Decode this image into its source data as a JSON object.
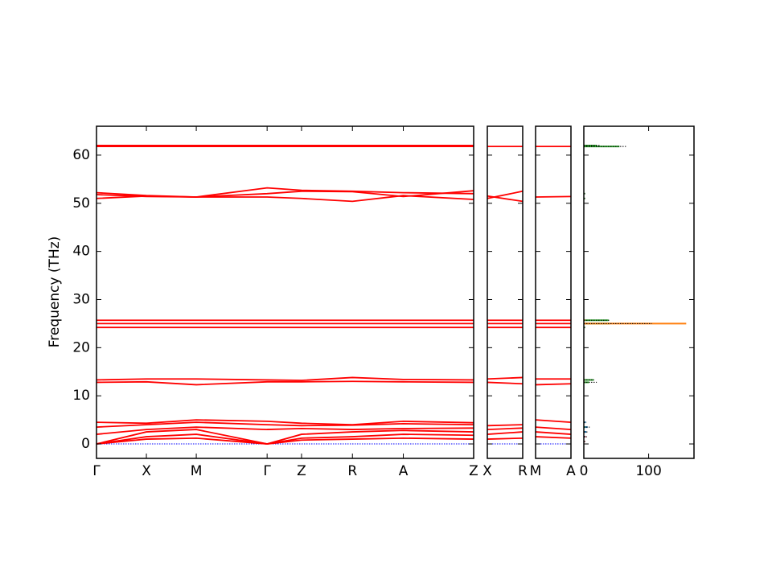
{
  "chart_data": [
    {
      "type": "line",
      "ylabel": "Frequency (THz)",
      "x": [
        0,
        1,
        2,
        3.42,
        4.11,
        5.13,
        6.15,
        7.56
      ],
      "xlim": [
        0,
        7.56
      ],
      "xticks": [
        {
          "value": 0,
          "label": "Γ"
        },
        {
          "value": 1,
          "label": "X"
        },
        {
          "value": 2,
          "label": "M"
        },
        {
          "value": 3.42,
          "label": "Γ"
        },
        {
          "value": 4.11,
          "label": "Z"
        },
        {
          "value": 5.13,
          "label": "R"
        },
        {
          "value": 6.15,
          "label": "A"
        },
        {
          "value": 7.56,
          "label": "Z"
        }
      ],
      "ylim": [
        -3,
        66
      ],
      "yticks": [
        0,
        10,
        20,
        30,
        40,
        50,
        60
      ],
      "series": [
        {
          "color": "#0000ff",
          "dash": "dotted",
          "values": [
            0,
            0,
            0,
            0,
            0,
            0,
            0,
            0
          ]
        },
        {
          "color": "#ff0000",
          "values": [
            0,
            1.0,
            1.2,
            0,
            0.8,
            1.0,
            1.2,
            1.0
          ]
        },
        {
          "color": "#ff0000",
          "values": [
            0,
            1.5,
            2.0,
            0,
            1.2,
            1.5,
            2.0,
            1.8
          ]
        },
        {
          "color": "#ff0000",
          "values": [
            0,
            2.5,
            3.0,
            0,
            2.0,
            2.5,
            2.8,
            2.5
          ]
        },
        {
          "color": "#ff0000",
          "values": [
            2.0,
            3.0,
            3.5,
            3.0,
            3.2,
            3.0,
            3.2,
            3.3
          ]
        },
        {
          "color": "#ff0000",
          "values": [
            3.5,
            4.0,
            4.5,
            4.0,
            3.8,
            3.9,
            4.2,
            4.0
          ]
        },
        {
          "color": "#ff0000",
          "values": [
            4.5,
            4.3,
            5.0,
            4.7,
            4.3,
            4.0,
            4.7,
            4.4
          ]
        },
        {
          "color": "#ff0000",
          "values": [
            12.8,
            12.9,
            12.3,
            12.9,
            12.9,
            13.0,
            12.9,
            12.8
          ]
        },
        {
          "color": "#ff0000",
          "values": [
            13.3,
            13.5,
            13.5,
            13.3,
            13.2,
            13.8,
            13.4,
            13.3
          ]
        },
        {
          "color": "#ff0000",
          "values": [
            24.2,
            24.2,
            24.2,
            24.2,
            24.2,
            24.2,
            24.2,
            24.2
          ]
        },
        {
          "color": "#ff0000",
          "values": [
            25.0,
            25.0,
            25.0,
            25.0,
            25.0,
            25.0,
            25.0,
            25.0
          ]
        },
        {
          "color": "#ff0000",
          "values": [
            25.7,
            25.7,
            25.7,
            25.7,
            25.7,
            25.7,
            25.7,
            25.7
          ]
        },
        {
          "color": "#ff0000",
          "values": [
            51.0,
            51.5,
            51.3,
            51.3,
            51.0,
            50.4,
            51.6,
            50.8
          ]
        },
        {
          "color": "#ff0000",
          "values": [
            51.8,
            51.4,
            51.3,
            52.0,
            52.5,
            52.4,
            51.4,
            52.6
          ]
        },
        {
          "color": "#ff0000",
          "values": [
            52.2,
            51.6,
            51.3,
            53.2,
            52.7,
            52.5,
            52.2,
            52.0
          ]
        },
        {
          "color": "#ff0000",
          "values": [
            61.8,
            61.8,
            61.8,
            61.8,
            61.8,
            61.8,
            61.8,
            61.8
          ]
        },
        {
          "color": "#ff0000",
          "values": [
            62.0,
            62.0,
            62.0,
            62.0,
            62.0,
            62.0,
            62.0,
            62.0
          ]
        }
      ]
    },
    {
      "type": "line",
      "x": [
        0,
        1
      ],
      "xlim": [
        0,
        1
      ],
      "xticks": [
        {
          "value": 0,
          "label": "X"
        },
        {
          "value": 1,
          "label": "R"
        }
      ],
      "series": [
        {
          "color": "#0000ff",
          "dash": "dotted",
          "values": [
            0,
            0
          ]
        },
        {
          "color": "#ff0000",
          "values": [
            1.0,
            1.2
          ]
        },
        {
          "color": "#ff0000",
          "values": [
            2.0,
            2.5
          ]
        },
        {
          "color": "#ff0000",
          "values": [
            3.0,
            3.3
          ]
        },
        {
          "color": "#ff0000",
          "values": [
            3.8,
            4.0
          ]
        },
        {
          "color": "#ff0000",
          "values": [
            12.8,
            12.5
          ]
        },
        {
          "color": "#ff0000",
          "values": [
            13.5,
            13.8
          ]
        },
        {
          "color": "#ff0000",
          "values": [
            24.2,
            24.2
          ]
        },
        {
          "color": "#ff0000",
          "values": [
            25.0,
            25.0
          ]
        },
        {
          "color": "#ff0000",
          "values": [
            25.7,
            25.7
          ]
        },
        {
          "color": "#ff0000",
          "values": [
            51.5,
            50.4
          ]
        },
        {
          "color": "#ff0000",
          "values": [
            51.0,
            52.5
          ]
        },
        {
          "color": "#ff0000",
          "values": [
            61.8,
            61.8
          ]
        }
      ]
    },
    {
      "type": "line",
      "x": [
        0,
        1
      ],
      "xlim": [
        0,
        1
      ],
      "xticks": [
        {
          "value": 0,
          "label": "M"
        },
        {
          "value": 1,
          "label": "A"
        }
      ],
      "series": [
        {
          "color": "#0000ff",
          "dash": "dotted",
          "values": [
            0,
            0
          ]
        },
        {
          "color": "#ff0000",
          "values": [
            1.5,
            1.2
          ]
        },
        {
          "color": "#ff0000",
          "values": [
            2.5,
            2.0
          ]
        },
        {
          "color": "#ff0000",
          "values": [
            3.5,
            3.0
          ]
        },
        {
          "color": "#ff0000",
          "values": [
            5.0,
            4.5
          ]
        },
        {
          "color": "#ff0000",
          "values": [
            12.3,
            12.5
          ]
        },
        {
          "color": "#ff0000",
          "values": [
            13.5,
            13.5
          ]
        },
        {
          "color": "#ff0000",
          "values": [
            24.2,
            24.2
          ]
        },
        {
          "color": "#ff0000",
          "values": [
            25.0,
            25.0
          ]
        },
        {
          "color": "#ff0000",
          "values": [
            25.7,
            25.7
          ]
        },
        {
          "color": "#ff0000",
          "values": [
            51.3,
            51.4
          ]
        },
        {
          "color": "#ff0000",
          "values": [
            61.8,
            61.8
          ]
        }
      ]
    },
    {
      "type": "dos",
      "xlim": [
        0,
        170
      ],
      "xticks": [
        0,
        100
      ],
      "frequencies": [
        0.5,
        1.5,
        2.5,
        3.5,
        4.5,
        12.8,
        13.3,
        24.2,
        25.0,
        25.7,
        51.0,
        52.0,
        61.8,
        62.0
      ],
      "series": [
        {
          "color": "#d62728",
          "values": [
            2,
            3,
            2,
            1,
            0,
            0,
            0,
            0,
            0,
            0,
            0,
            0,
            0,
            0
          ]
        },
        {
          "color": "#1f77b4",
          "values": [
            1,
            2,
            4,
            6,
            3,
            0,
            0,
            0,
            0,
            0,
            0,
            0,
            0,
            0
          ]
        },
        {
          "color": "#2ca02c",
          "values": [
            0,
            0,
            1,
            2,
            1,
            8,
            15,
            2,
            40,
            38,
            2,
            2,
            55,
            20
          ]
        },
        {
          "color": "#ff7f0e",
          "values": [
            0,
            0,
            0,
            0,
            0,
            1,
            1,
            0,
            158,
            2,
            0,
            0,
            1,
            1
          ]
        },
        {
          "color": "#000000",
          "dash": "dotted",
          "values": [
            3,
            5,
            7,
            9,
            4,
            20,
            16,
            3,
            105,
            40,
            3,
            3,
            65,
            25
          ]
        }
      ]
    }
  ]
}
